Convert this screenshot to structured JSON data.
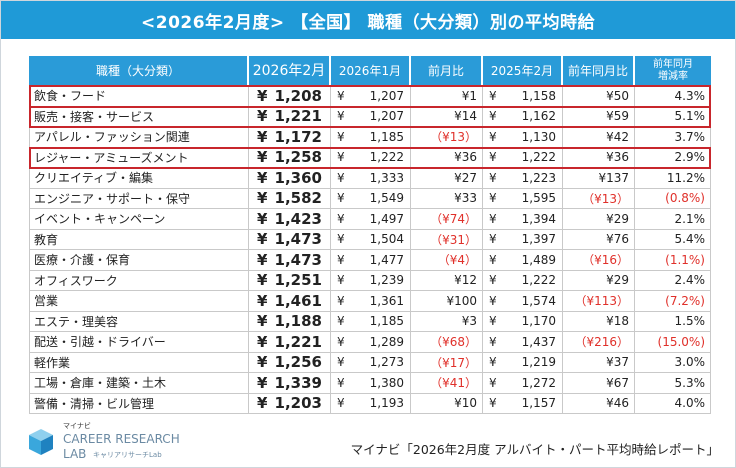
{
  "header": {
    "title": "<2026年2月度> 【全国】 職種（大分類）別の平均時給"
  },
  "table": {
    "currency": "¥",
    "columns": [
      "職種（大分類）",
      "2026年2月",
      "2026年1月",
      "前月比",
      "2025年2月",
      "前年同月比",
      "前年同月増減率"
    ],
    "highlight_rows": [
      0,
      1,
      3
    ],
    "rows": [
      [
        "飲食・フード",
        "1,208",
        "1,207",
        "¥1",
        "1,158",
        "¥50",
        "4.3%"
      ],
      [
        "販売・接客・サービス",
        "1,221",
        "1,207",
        "¥14",
        "1,162",
        "¥59",
        "5.1%"
      ],
      [
        "アパレル・ファッション関連",
        "1,172",
        "1,185",
        "（¥13）",
        "1,130",
        "¥42",
        "3.7%"
      ],
      [
        "レジャー・アミューズメント",
        "1,258",
        "1,222",
        "¥36",
        "1,222",
        "¥36",
        "2.9%"
      ],
      [
        "クリエイティブ・編集",
        "1,360",
        "1,333",
        "¥27",
        "1,223",
        "¥137",
        "11.2%"
      ],
      [
        "エンジニア・サポート・保守",
        "1,582",
        "1,549",
        "¥33",
        "1,595",
        "（¥13）",
        "(0.8%)"
      ],
      [
        "イベント・キャンペーン",
        "1,423",
        "1,497",
        "（¥74）",
        "1,394",
        "¥29",
        "2.1%"
      ],
      [
        "教育",
        "1,473",
        "1,504",
        "（¥31）",
        "1,397",
        "¥76",
        "5.4%"
      ],
      [
        "医療・介護・保育",
        "1,473",
        "1,477",
        "（¥4）",
        "1,489",
        "（¥16）",
        "(1.1%)"
      ],
      [
        "オフィスワーク",
        "1,251",
        "1,239",
        "¥12",
        "1,222",
        "¥29",
        "2.4%"
      ],
      [
        "営業",
        "1,461",
        "1,361",
        "¥100",
        "1,574",
        "（¥113）",
        "(7.2%)"
      ],
      [
        "エステ・理美容",
        "1,188",
        "1,185",
        "¥3",
        "1,170",
        "¥18",
        "1.5%"
      ],
      [
        "配送・引越・ドライバー",
        "1,221",
        "1,289",
        "（¥68）",
        "1,437",
        "（¥216）",
        "(15.0%)"
      ],
      [
        "軽作業",
        "1,256",
        "1,273",
        "（¥17）",
        "1,219",
        "¥37",
        "3.0%"
      ],
      [
        "工場・倉庫・建築・土木",
        "1,339",
        "1,380",
        "（¥41）",
        "1,272",
        "¥67",
        "5.3%"
      ],
      [
        "警備・清掃・ビル管理",
        "1,203",
        "1,193",
        "¥10",
        "1,157",
        "¥46",
        "4.0%"
      ]
    ]
  },
  "logo": {
    "brand": "マイナビ",
    "name": "CAREER RESEARCH",
    "lab": "LAB",
    "sub": "キャリアリサーチLab"
  },
  "footer": {
    "source": "マイナビ「2026年2月度 アルバイト・パート平均時給レポート」"
  }
}
